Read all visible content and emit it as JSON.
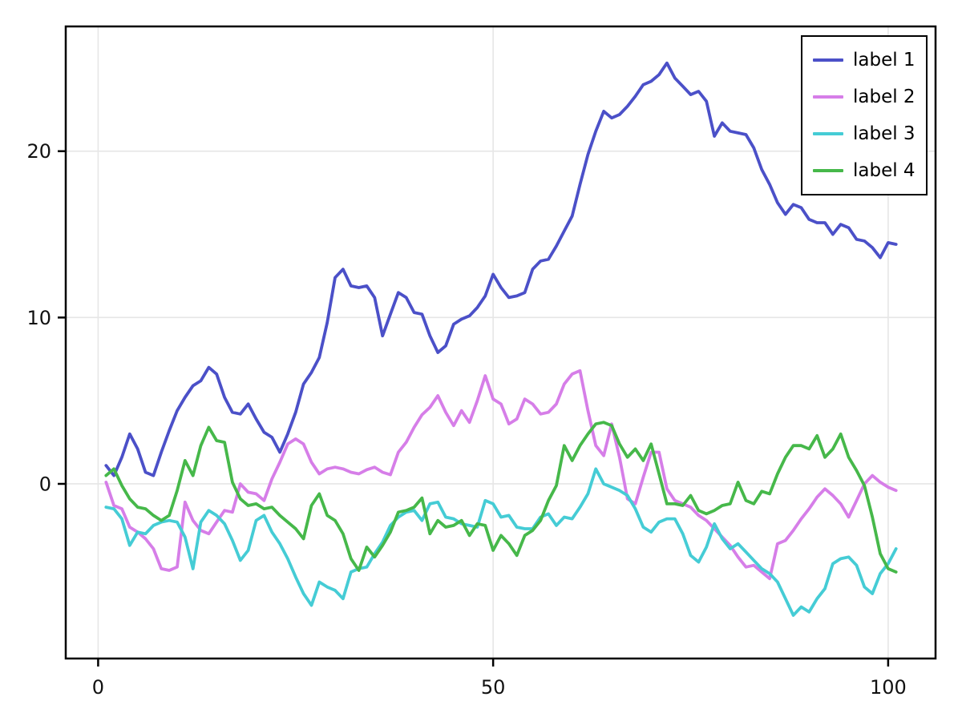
{
  "chart_data": {
    "type": "line",
    "title": "",
    "xlabel": "",
    "ylabel": "",
    "grid": true,
    "background_color": "#ffffff",
    "grid_color": "#e6e6e6",
    "frame_color": "#000000",
    "text_color": "#111111",
    "legend_position": "top-right",
    "xlim": [
      -4.1,
      106.0
    ],
    "ylim": [
      -10.5,
      27.5
    ],
    "x_ticks": [
      0,
      50,
      100
    ],
    "x_tick_labels": [
      "0",
      "50",
      "100"
    ],
    "y_ticks": [
      0,
      10,
      20
    ],
    "y_tick_labels": [
      "0",
      "10",
      "20"
    ],
    "x": [
      1,
      2,
      3,
      4,
      5,
      6,
      7,
      8,
      9,
      10,
      11,
      12,
      13,
      14,
      15,
      16,
      17,
      18,
      19,
      20,
      21,
      22,
      23,
      24,
      25,
      26,
      27,
      28,
      29,
      30,
      31,
      32,
      33,
      34,
      35,
      36,
      37,
      38,
      39,
      40,
      41,
      42,
      43,
      44,
      45,
      46,
      47,
      48,
      49,
      50,
      51,
      52,
      53,
      54,
      55,
      56,
      57,
      58,
      59,
      60,
      61,
      62,
      63,
      64,
      65,
      66,
      67,
      68,
      69,
      70,
      71,
      72,
      73,
      74,
      75,
      76,
      77,
      78,
      79,
      80,
      81,
      82,
      83,
      84,
      85,
      86,
      87,
      88,
      89,
      90,
      91,
      92,
      93,
      94,
      95,
      96,
      97,
      98,
      99,
      100,
      101
    ],
    "series": [
      {
        "name": "label 1",
        "color": "#4b50c8",
        "values": [
          1.1,
          0.5,
          1.6,
          3.0,
          2.1,
          0.7,
          0.5,
          1.9,
          3.2,
          4.4,
          5.2,
          5.9,
          6.2,
          7.0,
          6.6,
          5.2,
          4.3,
          4.2,
          4.8,
          3.9,
          3.1,
          2.8,
          1.9,
          3.0,
          4.3,
          6.0,
          6.7,
          7.6,
          9.7,
          12.4,
          12.9,
          11.9,
          11.8,
          11.9,
          11.2,
          8.9,
          10.2,
          11.5,
          11.2,
          10.3,
          10.2,
          8.9,
          7.9,
          8.3,
          9.6,
          9.9,
          10.1,
          10.6,
          11.3,
          12.6,
          11.8,
          11.2,
          11.3,
          11.5,
          12.9,
          13.4,
          13.5,
          14.3,
          15.2,
          16.1,
          18.0,
          19.8,
          21.2,
          22.4,
          22.0,
          22.2,
          22.7,
          23.3,
          24.0,
          24.2,
          24.6,
          25.3,
          24.4,
          23.9,
          23.4,
          23.6,
          23.0,
          20.9,
          21.7,
          21.2,
          21.1,
          21.0,
          20.2,
          18.9,
          18.0,
          16.9,
          16.2,
          16.8,
          16.6,
          15.9,
          15.7,
          15.7,
          15.0,
          15.6,
          15.4,
          14.7,
          14.6,
          14.2,
          13.6,
          14.5,
          14.4
        ]
      },
      {
        "name": "label 2",
        "color": "#d67ee8",
        "values": [
          0.1,
          -1.3,
          -1.5,
          -2.6,
          -2.9,
          -3.3,
          -3.9,
          -5.1,
          -5.2,
          -5.0,
          -1.1,
          -2.2,
          -2.8,
          -3.0,
          -2.3,
          -1.6,
          -1.7,
          0.0,
          -0.5,
          -0.6,
          -1.0,
          0.3,
          1.3,
          2.4,
          2.7,
          2.4,
          1.3,
          0.6,
          0.9,
          1.0,
          0.9,
          0.7,
          0.6,
          0.85,
          1.0,
          0.7,
          0.55,
          1.9,
          2.5,
          3.4,
          4.15,
          4.6,
          5.3,
          4.3,
          3.5,
          4.4,
          3.7,
          5.0,
          6.5,
          5.1,
          4.8,
          3.6,
          3.9,
          5.1,
          4.8,
          4.2,
          4.3,
          4.8,
          6.0,
          6.6,
          6.8,
          4.4,
          2.3,
          1.7,
          3.6,
          1.6,
          -0.9,
          -1.2,
          0.4,
          1.9,
          1.9,
          -0.3,
          -1.0,
          -1.2,
          -1.4,
          -1.9,
          -2.2,
          -2.7,
          -3.2,
          -3.7,
          -4.4,
          -5.0,
          -4.9,
          -5.3,
          -5.7,
          -3.6,
          -3.4,
          -2.8,
          -2.1,
          -1.5,
          -0.8,
          -0.3,
          -0.7,
          -1.2,
          -2.0,
          -1.0,
          0.0,
          0.5,
          0.1,
          -0.2,
          -0.4
        ]
      },
      {
        "name": "label 3",
        "color": "#45ccd5",
        "values": [
          -1.4,
          -1.5,
          -2.1,
          -3.7,
          -2.9,
          -3.0,
          -2.5,
          -2.3,
          -2.2,
          -2.3,
          -3.2,
          -5.1,
          -2.3,
          -1.6,
          -1.9,
          -2.4,
          -3.4,
          -4.6,
          -4.0,
          -2.2,
          -1.9,
          -2.9,
          -3.6,
          -4.5,
          -5.6,
          -6.6,
          -7.3,
          -5.9,
          -6.2,
          -6.4,
          -6.9,
          -5.3,
          -5.1,
          -5.0,
          -4.2,
          -3.5,
          -2.5,
          -2.0,
          -1.7,
          -1.6,
          -2.2,
          -1.2,
          -1.1,
          -2.0,
          -2.1,
          -2.4,
          -2.5,
          -2.6,
          -1.0,
          -1.2,
          -2.0,
          -1.9,
          -2.6,
          -2.7,
          -2.7,
          -2.0,
          -1.8,
          -2.5,
          -2.0,
          -2.1,
          -1.4,
          -0.6,
          0.9,
          0.0,
          -0.2,
          -0.4,
          -0.7,
          -1.5,
          -2.6,
          -2.9,
          -2.3,
          -2.1,
          -2.1,
          -3.0,
          -4.3,
          -4.7,
          -3.8,
          -2.4,
          -3.3,
          -3.9,
          -3.6,
          -4.1,
          -4.6,
          -5.1,
          -5.4,
          -5.9,
          -6.9,
          -7.9,
          -7.4,
          -7.7,
          -6.9,
          -6.3,
          -4.8,
          -4.5,
          -4.4,
          -4.9,
          -6.2,
          -6.6,
          -5.4,
          -4.8,
          -3.9
        ]
      },
      {
        "name": "label 4",
        "color": "#46b84a",
        "values": [
          0.5,
          0.9,
          -0.1,
          -0.9,
          -1.4,
          -1.5,
          -1.9,
          -2.2,
          -1.9,
          -0.4,
          1.4,
          0.5,
          2.3,
          3.4,
          2.6,
          2.5,
          0.1,
          -0.9,
          -1.3,
          -1.2,
          -1.5,
          -1.4,
          -1.9,
          -2.3,
          -2.7,
          -3.3,
          -1.3,
          -0.6,
          -1.9,
          -2.2,
          -3.0,
          -4.5,
          -5.2,
          -3.8,
          -4.4,
          -3.7,
          -2.9,
          -1.7,
          -1.6,
          -1.4,
          -0.85,
          -3.0,
          -2.2,
          -2.6,
          -2.5,
          -2.2,
          -3.1,
          -2.4,
          -2.5,
          -4.0,
          -3.1,
          -3.6,
          -4.3,
          -3.1,
          -2.8,
          -2.2,
          -1.0,
          -0.1,
          2.3,
          1.4,
          2.3,
          3.0,
          3.6,
          3.7,
          3.5,
          2.4,
          1.6,
          2.1,
          1.4,
          2.4,
          0.6,
          -1.2,
          -1.2,
          -1.3,
          -0.7,
          -1.6,
          -1.8,
          -1.6,
          -1.3,
          -1.2,
          0.1,
          -1.0,
          -1.2,
          -0.45,
          -0.6,
          0.6,
          1.6,
          2.3,
          2.3,
          2.1,
          2.9,
          1.6,
          2.1,
          3.0,
          1.6,
          0.8,
          -0.1,
          -2.0,
          -4.2,
          -5.1,
          -5.3
        ]
      }
    ]
  }
}
